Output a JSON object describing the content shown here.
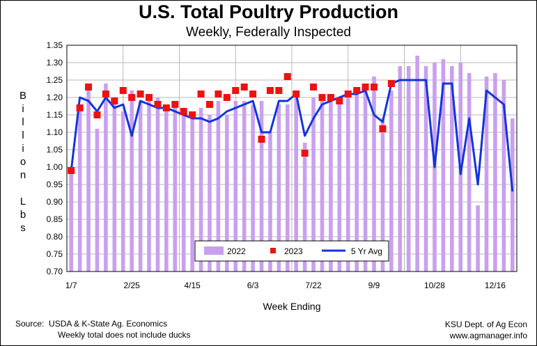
{
  "chart_data": {
    "type": "bar",
    "title": "U.S. Total Poultry Production",
    "subtitle": "Weekly, Federally Inspected",
    "ylabel": "Billion Lbs",
    "xlabel": "Week Ending",
    "ylim": [
      0.7,
      1.35
    ],
    "yticks": [
      "0.70",
      "0.75",
      "0.80",
      "0.85",
      "0.90",
      "0.95",
      "1.00",
      "1.05",
      "1.10",
      "1.15",
      "1.20",
      "1.25",
      "1.30",
      "1.35"
    ],
    "xtick_labels": [
      {
        "label": "1/7",
        "week": 1
      },
      {
        "label": "2/25",
        "week": 8
      },
      {
        "label": "4/15",
        "week": 15
      },
      {
        "label": "6/3",
        "week": 22
      },
      {
        "label": "7/22",
        "week": 29
      },
      {
        "label": "9/9",
        "week": 36
      },
      {
        "label": "10/28",
        "week": 43
      },
      {
        "label": "12/16",
        "week": 50
      }
    ],
    "grid": true,
    "legend_position": "bottom-center",
    "colors": {
      "bar2022": "#c9a0f0",
      "marker2023": "#ee1111",
      "avg5yr": "#1133dd"
    },
    "series": [
      {
        "name": "2022",
        "type": "bar",
        "values": [
          1.0,
          1.18,
          1.22,
          1.11,
          1.24,
          1.19,
          1.16,
          1.22,
          1.19,
          1.19,
          1.2,
          1.18,
          1.19,
          1.17,
          1.15,
          1.17,
          1.15,
          1.19,
          1.15,
          1.19,
          1.19,
          1.18,
          1.19,
          1.1,
          1.18,
          1.18,
          1.21,
          1.07,
          1.2,
          1.21,
          1.2,
          1.19,
          1.21,
          1.22,
          1.22,
          1.26,
          1.14,
          1.22,
          1.29,
          1.29,
          1.32,
          1.29,
          1.3,
          1.31,
          1.29,
          1.3,
          1.27,
          0.89,
          1.26,
          1.27,
          1.25,
          1.14
        ]
      },
      {
        "name": "2023",
        "type": "scatter",
        "values": [
          0.99,
          1.17,
          1.23,
          1.15,
          1.21,
          1.19,
          1.22,
          1.2,
          1.21,
          1.2,
          1.18,
          1.17,
          1.18,
          1.16,
          1.15,
          1.21,
          1.18,
          1.21,
          1.2,
          1.22,
          1.23,
          1.21,
          1.08,
          1.22,
          1.22,
          1.26,
          1.21,
          1.04,
          1.23,
          1.2,
          1.2,
          1.19,
          1.21,
          1.22,
          1.23,
          1.23,
          1.11,
          1.24
        ]
      },
      {
        "name": "5 Yr Avg",
        "type": "line",
        "values": [
          0.99,
          1.2,
          1.19,
          1.16,
          1.2,
          1.17,
          1.18,
          1.09,
          1.19,
          1.18,
          1.17,
          1.17,
          1.16,
          1.15,
          1.14,
          1.14,
          1.13,
          1.14,
          1.16,
          1.17,
          1.18,
          1.19,
          1.1,
          1.1,
          1.19,
          1.19,
          1.21,
          1.09,
          1.14,
          1.18,
          1.19,
          1.2,
          1.21,
          1.21,
          1.22,
          1.15,
          1.13,
          1.24,
          1.25,
          1.25,
          1.25,
          1.25,
          1.0,
          1.24,
          1.24,
          0.98,
          1.14,
          0.95,
          1.22,
          1.2,
          1.18,
          0.93
        ]
      }
    ]
  },
  "footer": {
    "source_line1": "Source:  USDA & K-State Ag. Economics",
    "source_line2": "Weekly total does not include ducks",
    "credit_line1": "KSU Dept. of Ag Econ",
    "credit_line2": "www.agmanager.info"
  }
}
